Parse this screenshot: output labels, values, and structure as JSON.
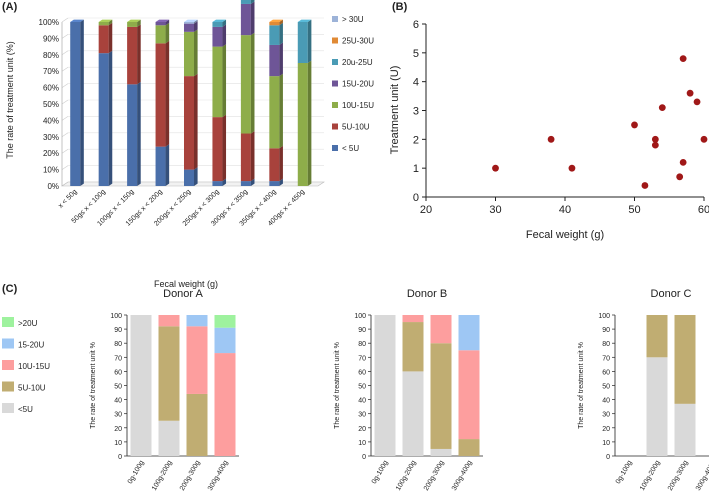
{
  "chart_data": [
    {
      "id": "A",
      "panel_label": "(A)",
      "type": "bar",
      "stacked": true,
      "style": "3d",
      "ylabel": "The rate of treatment unit (%)",
      "xlabel": "Fecal weight (g)",
      "yticks": [
        "0%",
        "10%",
        "20%",
        "30%",
        "40%",
        "50%",
        "60%",
        "70%",
        "80%",
        "90%",
        "100%"
      ],
      "categories": [
        "x < 50g",
        "50g≤ x < 100g",
        "100g≤ x < 150g",
        "150g≤ x < 200g",
        "200g≤ x < 250g",
        "250g≤ x < 300g",
        "300g≤ x < 350g",
        "350g≤ x < 400g",
        "400g≤ x < 450g"
      ],
      "series": [
        {
          "name": "< 5U",
          "color": "#4a6faa",
          "values": [
            100,
            81,
            62,
            24,
            10,
            3,
            3,
            3,
            0
          ]
        },
        {
          "name": "5U-10U",
          "color": "#a8423c",
          "values": [
            0,
            17,
            35,
            63,
            57,
            39,
            29,
            20,
            0
          ]
        },
        {
          "name": "10U-15U",
          "color": "#8ead4a",
          "values": [
            0,
            2,
            3,
            11,
            27,
            43,
            60,
            44,
            75
          ]
        },
        {
          "name": "15U-20U",
          "color": "#6e5597",
          "values": [
            0,
            0,
            0,
            2,
            5,
            12,
            19,
            19,
            0
          ]
        },
        {
          "name": "20u-25U",
          "color": "#4a9bb5",
          "values": [
            0,
            0,
            0,
            0,
            0,
            3,
            7,
            12,
            25
          ]
        },
        {
          "name": "25U-30U",
          "color": "#e08a35",
          "values": [
            0,
            0,
            0,
            0,
            0,
            0,
            0,
            2,
            0
          ]
        },
        {
          "name": "> 30U",
          "color": "#9db3d8",
          "values": [
            0,
            0,
            0,
            0,
            1,
            0,
            0,
            0,
            0
          ]
        }
      ],
      "legend_order": [
        "> 30U",
        "25U-30U",
        "20u-25U",
        "15U-20U",
        "10U-15U",
        "5U-10U",
        "< 5U"
      ]
    },
    {
      "id": "B",
      "panel_label": "(B)",
      "type": "scatter",
      "xlabel": "Fecal weight (g)",
      "ylabel": "Treatment unit (U)",
      "xlim": [
        20,
        60
      ],
      "ylim": [
        0,
        6
      ],
      "xticks": [
        20,
        30,
        40,
        50,
        60
      ],
      "yticks": [
        0,
        1,
        2,
        3,
        4,
        5,
        6
      ],
      "color": "#a01818",
      "points": [
        {
          "x": 30,
          "y": 1.0
        },
        {
          "x": 38,
          "y": 2.0
        },
        {
          "x": 41,
          "y": 1.0
        },
        {
          "x": 50,
          "y": 2.5
        },
        {
          "x": 51.5,
          "y": 0.4
        },
        {
          "x": 53,
          "y": 2.0
        },
        {
          "x": 53,
          "y": 1.8
        },
        {
          "x": 54,
          "y": 3.1
        },
        {
          "x": 56.5,
          "y": 0.7
        },
        {
          "x": 57,
          "y": 4.8
        },
        {
          "x": 57,
          "y": 1.2
        },
        {
          "x": 58,
          "y": 3.6
        },
        {
          "x": 59,
          "y": 3.3
        },
        {
          "x": 60,
          "y": 2.0
        }
      ]
    },
    {
      "id": "C",
      "panel_label": "(C)",
      "type": "bar",
      "stacked": true,
      "ylabel": "The rate of treatment unit %",
      "yticks": [
        0,
        10,
        20,
        30,
        40,
        50,
        60,
        70,
        80,
        90,
        100
      ],
      "ylim": [
        0,
        100
      ],
      "categories": [
        "0g-100g",
        "100g-200g",
        "200g-300g",
        "300g-400g"
      ],
      "series_meta": [
        {
          "name": "<5U",
          "color": "#d9d9d9"
        },
        {
          "name": "5U-10U",
          "color": "#c0ad72"
        },
        {
          "name": "10U-15U",
          "color": "#fd9e9e"
        },
        {
          "name": "15-20U",
          "color": "#9ec7f4"
        },
        {
          "name": ">20U",
          "color": "#9ef29e"
        }
      ],
      "legend_order": [
        ">20U",
        "15-20U",
        "10U-15U",
        "5U-10U",
        "<5U"
      ],
      "subcharts": [
        {
          "title": "Donor A",
          "series": [
            {
              "name": "<5U",
              "values": [
                100,
                25,
                0,
                0
              ]
            },
            {
              "name": "5U-10U",
              "values": [
                0,
                67,
                44,
                0
              ]
            },
            {
              "name": "10U-15U",
              "values": [
                0,
                8,
                48,
                73
              ]
            },
            {
              "name": "15-20U",
              "values": [
                0,
                0,
                8,
                18
              ]
            },
            {
              "name": ">20U",
              "values": [
                0,
                0,
                0,
                9
              ]
            }
          ]
        },
        {
          "title": "Donor B",
          "series": [
            {
              "name": "<5U",
              "values": [
                100,
                60,
                5,
                0
              ]
            },
            {
              "name": "5U-10U",
              "values": [
                0,
                35,
                75,
                12
              ]
            },
            {
              "name": "10U-15U",
              "values": [
                0,
                5,
                20,
                63
              ]
            },
            {
              "name": "15-20U",
              "values": [
                0,
                0,
                0,
                25
              ]
            },
            {
              "name": ">20U",
              "values": [
                0,
                0,
                0,
                0
              ]
            }
          ]
        },
        {
          "title": "Donor C",
          "series": [
            {
              "name": "<5U",
              "values": [
                0,
                70,
                37,
                0
              ]
            },
            {
              "name": "5U-10U",
              "values": [
                0,
                30,
                63,
                0
              ]
            },
            {
              "name": "10U-15U",
              "values": [
                0,
                0,
                0,
                0
              ]
            },
            {
              "name": "15-20U",
              "values": [
                0,
                0,
                0,
                0
              ]
            },
            {
              "name": ">20U",
              "values": [
                0,
                0,
                0,
                0
              ]
            }
          ]
        }
      ]
    }
  ]
}
